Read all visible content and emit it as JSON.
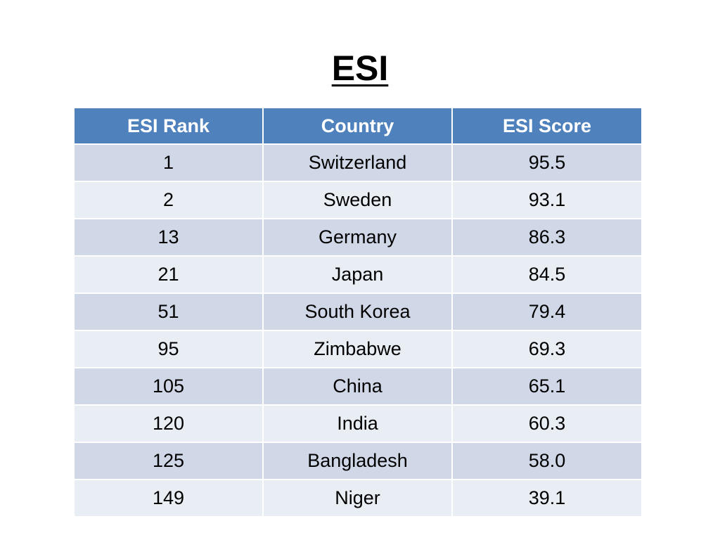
{
  "title": "ESI",
  "table": {
    "headers": [
      "ESI Rank",
      "Country",
      "ESI Score"
    ],
    "rows": [
      [
        "1",
        "Switzerland",
        "95.5"
      ],
      [
        "2",
        "Sweden",
        "93.1"
      ],
      [
        "13",
        "Germany",
        "86.3"
      ],
      [
        "21",
        "Japan",
        "84.5"
      ],
      [
        "51",
        "South Korea",
        "79.4"
      ],
      [
        "95",
        "Zimbabwe",
        "69.3"
      ],
      [
        "105",
        "China",
        "65.1"
      ],
      [
        "120",
        "India",
        "60.3"
      ],
      [
        "125",
        "Bangladesh",
        "58.0"
      ],
      [
        "149",
        "Niger",
        "39.1"
      ]
    ]
  },
  "colors": {
    "header_bg": "#4f81bd",
    "row_odd_bg": "#d0d8e8",
    "row_even_bg": "#e9edf4"
  }
}
